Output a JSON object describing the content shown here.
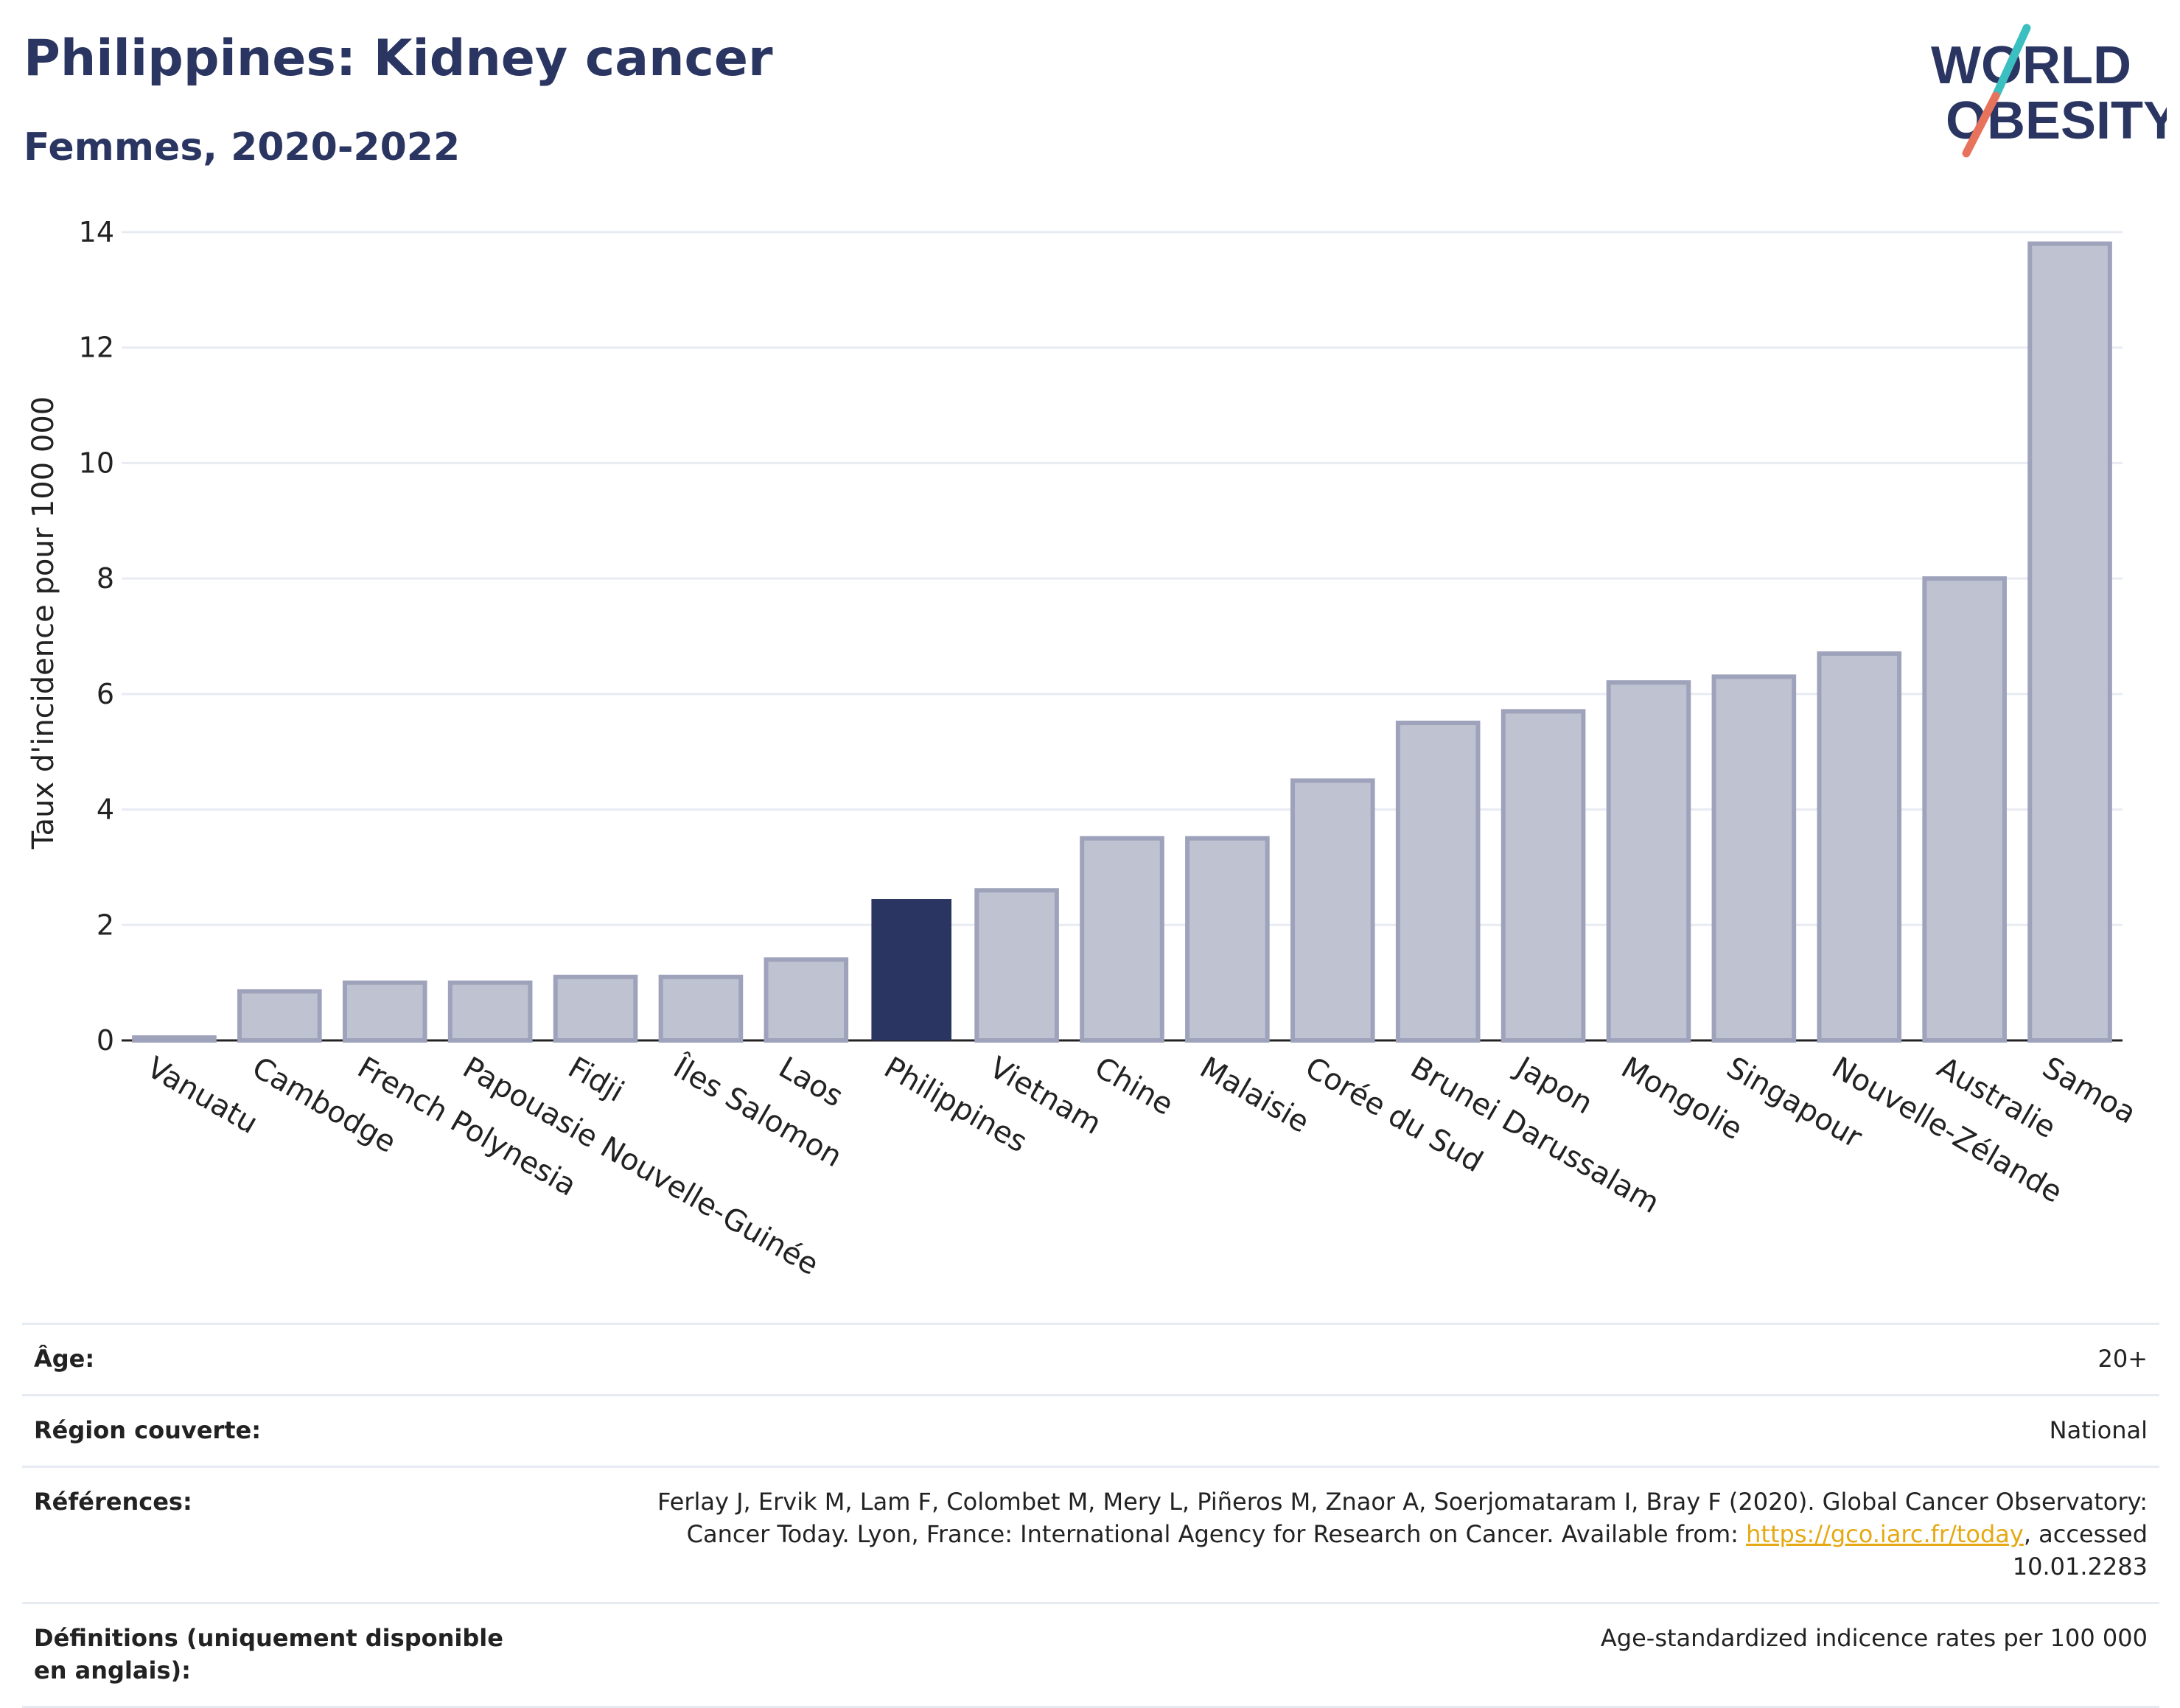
{
  "header": {
    "title": "Philippines: Kidney cancer",
    "subtitle": "Femmes, 2020-2022"
  },
  "logo": {
    "line1": "WORLD",
    "line2": "OBESITY"
  },
  "chart_data": {
    "type": "bar",
    "ylabel": "Taux d'incidence pour 100 000",
    "xlabel": "",
    "ylim": [
      0,
      14
    ],
    "yticks": [
      0,
      2,
      4,
      6,
      8,
      10,
      12,
      14
    ],
    "grid": true,
    "highlight": "Philippines",
    "categories": [
      "Vanuatu",
      "Cambodge",
      "French Polynesia",
      "Papouasie Nouvelle-Guinée",
      "Fidji",
      "Îles Salomon",
      "Laos",
      "Philippines",
      "Vietnam",
      "Chine",
      "Malaisie",
      "Corée du Sud",
      "Brunei Darussalam",
      "Japon",
      "Mongolie",
      "Singapour",
      "Nouvelle-Zélande",
      "Australie",
      "Samoa"
    ],
    "values": [
      0.05,
      0.85,
      1.0,
      1.0,
      1.1,
      1.1,
      1.4,
      2.45,
      2.6,
      3.5,
      3.5,
      4.5,
      5.5,
      5.7,
      6.2,
      6.3,
      6.7,
      8.0,
      13.8
    ]
  },
  "colors": {
    "title": "#2a3561",
    "bar": "#bfc2d0",
    "bar_border": "#9ea3bb",
    "highlight": "#2a3561",
    "link": "#e5a913",
    "logo_slash_top": "#3bbfc0",
    "logo_slash_bottom": "#e8735c"
  },
  "meta": {
    "age_label": "Âge:",
    "age_value": "20+",
    "region_label": "Région couverte:",
    "region_value": "National",
    "refs_label": "Références:",
    "refs_text1": "Ferlay J, Ervik M, Lam F, Colombet M, Mery L, Piñeros M, Znaor A, Soerjomataram I, Bray F (2020). Global Cancer Observatory: Cancer Today. Lyon, France: International Agency for Research on Cancer. Available from: ",
    "refs_link": "https://gco.iarc.fr/today",
    "refs_text2": ", accessed 10.01.2283",
    "defs_label": "Définitions (uniquement disponible en anglais):",
    "defs_value": "Age-standardized indicence rates per 100 000"
  }
}
